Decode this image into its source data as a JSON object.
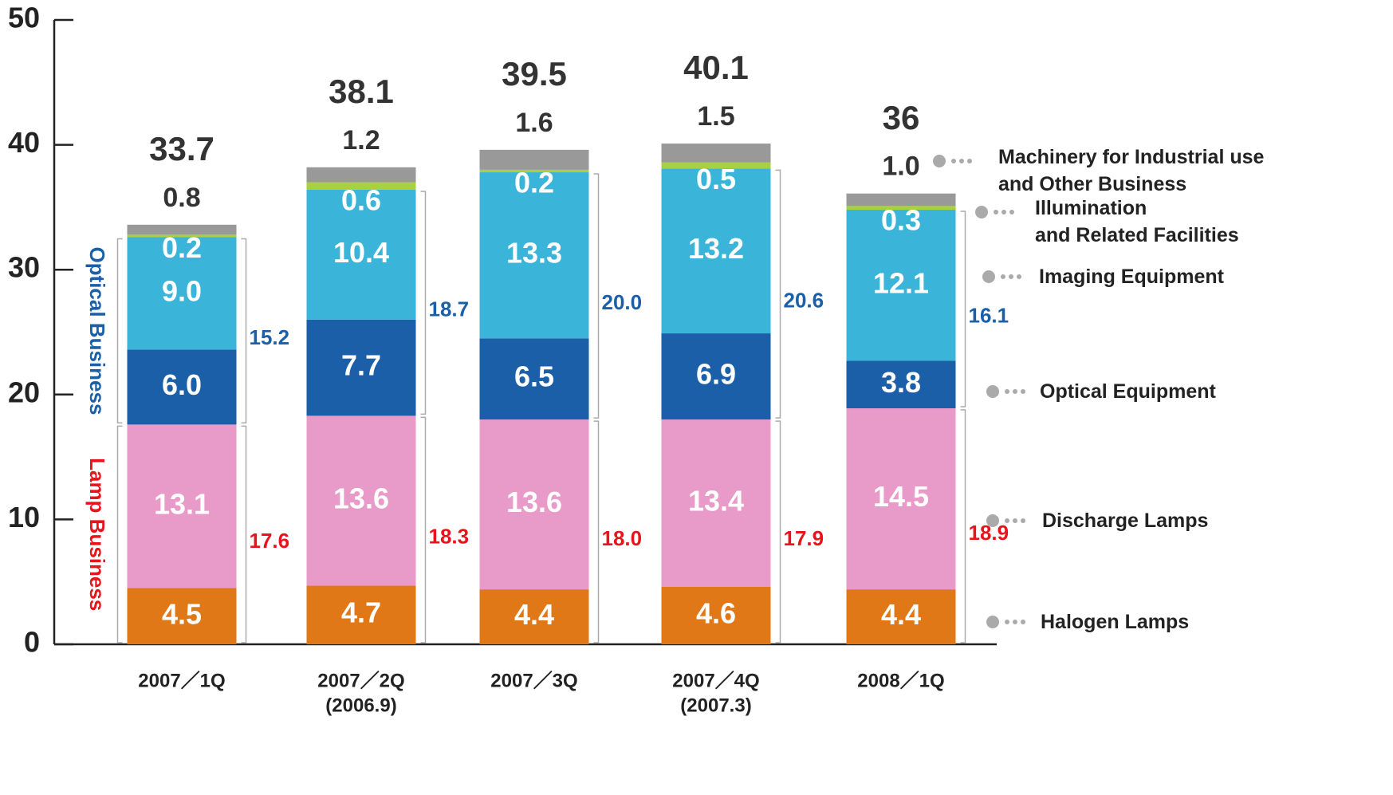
{
  "chart_data": {
    "type": "stacked_bar",
    "categories": [
      "2007／1Q",
      "2007／2Q",
      "2007／3Q",
      "2007／4Q",
      "2008／1Q"
    ],
    "category_sublabels": [
      null,
      "(2006.9)",
      null,
      "(2007.3)",
      null
    ],
    "series": [
      {
        "name": "Halogen Lamps",
        "color": "#e07818",
        "values": [
          4.5,
          4.7,
          4.4,
          4.6,
          4.4
        ]
      },
      {
        "name": "Discharge Lamps",
        "color": "#e89ac8",
        "values": [
          13.1,
          13.6,
          13.6,
          13.4,
          14.5
        ]
      },
      {
        "name": "Optical Equipment",
        "color": "#1a5fa8",
        "values": [
          6.0,
          7.7,
          6.5,
          6.9,
          3.8
        ],
        "value_labels": [
          "6.0",
          "7.7",
          "6.5",
          "6.9",
          "3.8"
        ]
      },
      {
        "name": "Imaging Equipment",
        "color": "#3ab4d8",
        "values": [
          9.0,
          10.4,
          13.3,
          13.2,
          12.1
        ],
        "value_labels": [
          "9.0",
          "10.4",
          "13.3",
          "13.2",
          "12.1"
        ]
      },
      {
        "name": "Illumination\nand Related Facilities",
        "color": "#a8d040",
        "values": [
          0.2,
          0.6,
          0.2,
          0.5,
          0.3
        ]
      },
      {
        "name": "Machinery for Industrial use\nand Other Business",
        "color": "#999999",
        "values": [
          0.8,
          1.2,
          1.6,
          1.5,
          1.0
        ],
        "value_labels": [
          "0.8",
          "1.2",
          "1.6",
          "1.5",
          "1.0"
        ]
      }
    ],
    "totals": [
      33.7,
      38.1,
      39.5,
      40.1,
      36.0
    ],
    "total_labels": [
      "33.7",
      "38.1",
      "39.5",
      "40.1",
      "36.0"
    ],
    "groups": [
      {
        "name": "Lamp Business",
        "color": "#e8141c",
        "series_count": 2,
        "values": [
          17.6,
          18.3,
          18.0,
          17.9,
          18.9
        ],
        "value_labels": [
          "17.6",
          "18.3",
          "18.0",
          "17.9",
          "18.9"
        ]
      },
      {
        "name": "Optical Business",
        "color": "#1a5fa8",
        "series_count": 2,
        "values": [
          15.2,
          18.7,
          20.0,
          20.6,
          16.1
        ],
        "value_labels": [
          "15.2",
          "18.7",
          "20.0",
          "20.6",
          "16.1"
        ]
      }
    ],
    "ylim": [
      0,
      50
    ],
    "yticks": [
      0,
      10,
      20,
      30,
      40,
      50
    ]
  }
}
